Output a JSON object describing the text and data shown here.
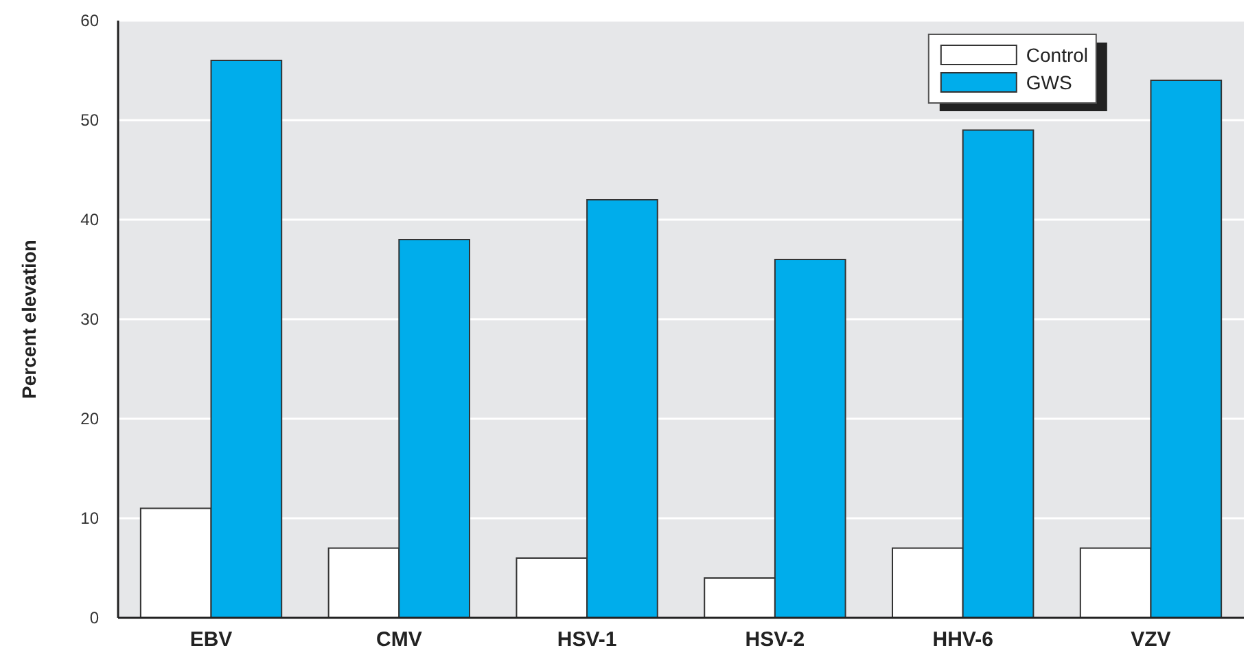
{
  "chart_data": {
    "type": "bar",
    "ylabel": "Percent elevation",
    "categories": [
      "EBV",
      "CMV",
      "HSV-1",
      "HSV-2",
      "HHV-6",
      "VZV"
    ],
    "series": [
      {
        "name": "Control",
        "color": "#ffffff",
        "values": [
          11,
          7,
          6,
          4,
          7,
          7
        ]
      },
      {
        "name": "GWS",
        "color": "#00adeb",
        "values": [
          56,
          38,
          42,
          36,
          49,
          54
        ]
      }
    ],
    "ylim": [
      0,
      60
    ],
    "yticks": [
      0,
      10,
      20,
      30,
      40,
      50,
      60
    ],
    "grid": "y",
    "legend": "top right"
  }
}
